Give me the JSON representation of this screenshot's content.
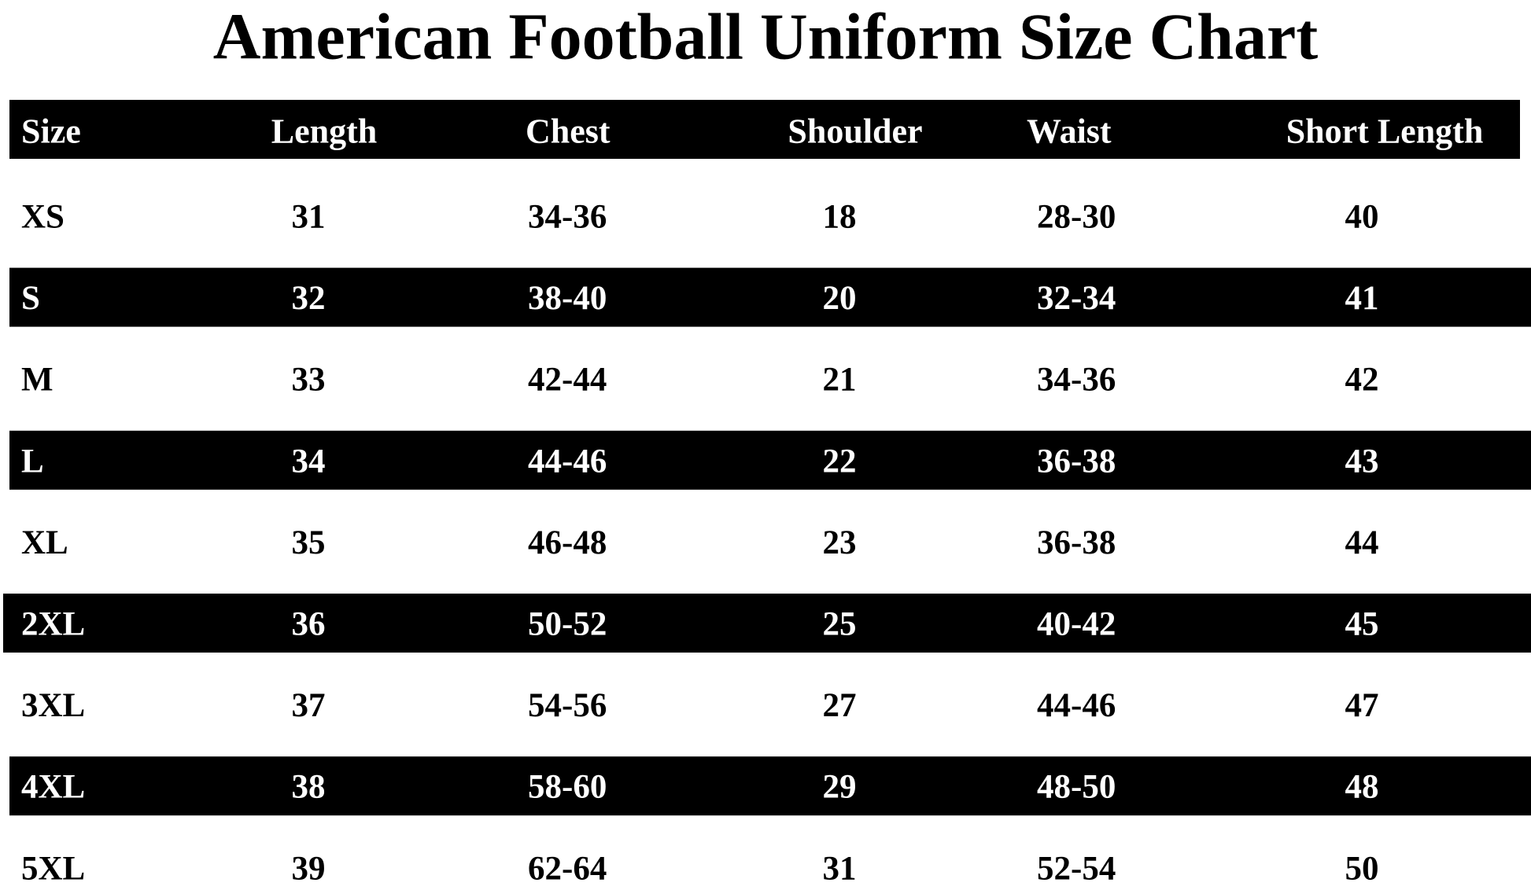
{
  "title": "American Football Uniform Size Chart",
  "table": {
    "headers": [
      "Size",
      "Length",
      "Chest",
      "Shoulder",
      "Waist",
      "Short Length"
    ],
    "rows": [
      [
        "XS",
        31,
        "34-36",
        18,
        "28-30",
        40
      ],
      [
        "S",
        32,
        "38-40",
        20,
        "32-34",
        41
      ],
      [
        "M",
        33,
        "42-44",
        21,
        "34-36",
        42
      ],
      [
        "L",
        34,
        "44-46",
        22,
        "36-38",
        43
      ],
      [
        "XL",
        35,
        "46-48",
        23,
        "36-38",
        44
      ],
      [
        "2XL",
        36,
        "50-52",
        25,
        "40-42",
        45
      ],
      [
        "3XL",
        37,
        "54-56",
        27,
        "44-46",
        47
      ],
      [
        "4XL",
        38,
        "58-60",
        29,
        "48-50",
        48
      ],
      [
        "5XL",
        39,
        "62-64",
        31,
        "52-54",
        50
      ]
    ]
  }
}
